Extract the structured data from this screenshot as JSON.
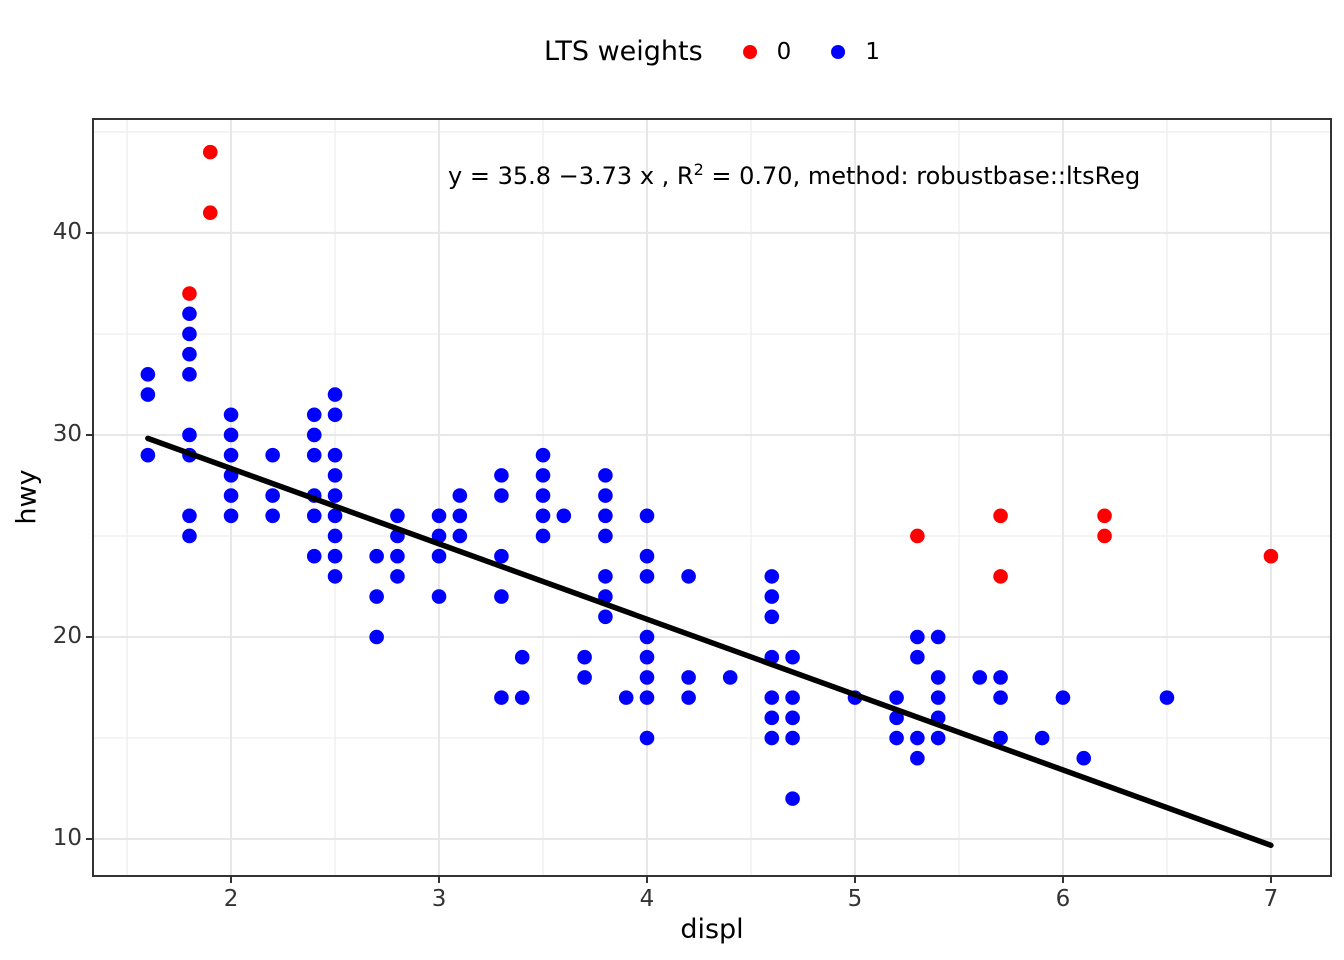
{
  "legend": {
    "title": "LTS weights",
    "items": [
      {
        "label": "0",
        "color": "#ff0000"
      },
      {
        "label": "1",
        "color": "#0000ff"
      }
    ]
  },
  "annotation": {
    "prefix": "y = 35.8 −3.73 x , R",
    "sup": "2",
    "suffix": " = 0.70, method: robustbase::ltsReg"
  },
  "axes": {
    "x": {
      "label": "displ",
      "ticks": [
        "2",
        "3",
        "4",
        "5",
        "6",
        "7"
      ],
      "tick_values": [
        2,
        3,
        4,
        5,
        6,
        7
      ],
      "minor_values": [
        1.5,
        2.5,
        3.5,
        4.5,
        5.5,
        6.5
      ],
      "domain": [
        1.341,
        7.284
      ]
    },
    "y": {
      "label": "hwy",
      "ticks": [
        "10",
        "20",
        "30",
        "40"
      ],
      "tick_values": [
        10,
        20,
        30,
        40
      ],
      "minor_values": [
        15,
        25,
        35,
        45
      ],
      "domain": [
        8.22,
        45.59
      ]
    }
  },
  "chart_data": {
    "type": "scatter",
    "title": "LTS weights",
    "xlabel": "displ",
    "ylabel": "hwy",
    "xlim": [
      1.341,
      7.284
    ],
    "ylim": [
      8.22,
      45.59
    ],
    "grid": "on",
    "legend_position": "top",
    "annotation_text": "y = 35.8 −3.73 x , R² = 0.70, method: robustbase::ltsReg",
    "method": "robustbase::ltsReg",
    "r_squared": 0.7,
    "regression_line": {
      "intercept": 35.8,
      "slope": -3.73,
      "x_start": 1.6,
      "x_end": 7.0,
      "color": "#000000",
      "width": 5.5
    },
    "series": [
      {
        "name": "0",
        "color": "#ff0000",
        "points": [
          [
            1.9,
            44
          ],
          [
            1.9,
            41
          ],
          [
            1.8,
            37
          ],
          [
            5.3,
            25
          ],
          [
            5.7,
            26
          ],
          [
            5.7,
            23
          ],
          [
            6.2,
            26
          ],
          [
            6.2,
            25
          ],
          [
            7.0,
            24
          ]
        ]
      },
      {
        "name": "1",
        "color": "#0000ff",
        "points": [
          [
            1.6,
            33
          ],
          [
            1.6,
            32
          ],
          [
            1.6,
            29
          ],
          [
            1.8,
            36
          ],
          [
            1.8,
            35
          ],
          [
            1.8,
            34
          ],
          [
            1.8,
            33
          ],
          [
            1.8,
            30
          ],
          [
            1.8,
            29
          ],
          [
            1.8,
            26
          ],
          [
            1.8,
            25
          ],
          [
            2.0,
            31
          ],
          [
            2.0,
            30
          ],
          [
            2.0,
            29
          ],
          [
            2.0,
            28
          ],
          [
            2.0,
            27
          ],
          [
            2.0,
            26
          ],
          [
            2.2,
            29
          ],
          [
            2.2,
            27
          ],
          [
            2.2,
            26
          ],
          [
            2.4,
            31
          ],
          [
            2.4,
            30
          ],
          [
            2.4,
            29
          ],
          [
            2.4,
            27
          ],
          [
            2.4,
            26
          ],
          [
            2.4,
            24
          ],
          [
            2.5,
            32
          ],
          [
            2.5,
            31
          ],
          [
            2.5,
            29
          ],
          [
            2.5,
            28
          ],
          [
            2.5,
            27
          ],
          [
            2.5,
            26
          ],
          [
            2.5,
            25
          ],
          [
            2.5,
            24
          ],
          [
            2.5,
            23
          ],
          [
            2.7,
            24
          ],
          [
            2.7,
            22
          ],
          [
            2.7,
            20
          ],
          [
            2.8,
            26
          ],
          [
            2.8,
            25
          ],
          [
            2.8,
            24
          ],
          [
            2.8,
            23
          ],
          [
            3.0,
            26
          ],
          [
            3.0,
            25
          ],
          [
            3.0,
            24
          ],
          [
            3.0,
            22
          ],
          [
            3.1,
            27
          ],
          [
            3.1,
            26
          ],
          [
            3.1,
            25
          ],
          [
            3.3,
            28
          ],
          [
            3.3,
            27
          ],
          [
            3.3,
            24
          ],
          [
            3.3,
            22
          ],
          [
            3.3,
            17
          ],
          [
            3.4,
            19
          ],
          [
            3.4,
            17
          ],
          [
            3.5,
            29
          ],
          [
            3.5,
            28
          ],
          [
            3.5,
            27
          ],
          [
            3.5,
            26
          ],
          [
            3.5,
            25
          ],
          [
            3.6,
            26
          ],
          [
            3.7,
            19
          ],
          [
            3.7,
            18
          ],
          [
            3.8,
            28
          ],
          [
            3.8,
            27
          ],
          [
            3.8,
            26
          ],
          [
            3.8,
            25
          ],
          [
            3.8,
            23
          ],
          [
            3.8,
            22
          ],
          [
            3.8,
            21
          ],
          [
            3.9,
            17
          ],
          [
            4.0,
            26
          ],
          [
            4.0,
            24
          ],
          [
            4.0,
            23
          ],
          [
            4.0,
            20
          ],
          [
            4.0,
            19
          ],
          [
            4.0,
            18
          ],
          [
            4.0,
            17
          ],
          [
            4.0,
            15
          ],
          [
            4.2,
            23
          ],
          [
            4.2,
            18
          ],
          [
            4.2,
            17
          ],
          [
            4.4,
            18
          ],
          [
            4.6,
            23
          ],
          [
            4.6,
            22
          ],
          [
            4.6,
            21
          ],
          [
            4.6,
            19
          ],
          [
            4.6,
            17
          ],
          [
            4.6,
            16
          ],
          [
            4.6,
            15
          ],
          [
            4.7,
            19
          ],
          [
            4.7,
            17
          ],
          [
            4.7,
            16
          ],
          [
            4.7,
            15
          ],
          [
            4.7,
            12
          ],
          [
            5.0,
            17
          ],
          [
            5.2,
            17
          ],
          [
            5.2,
            16
          ],
          [
            5.2,
            15
          ],
          [
            5.3,
            20
          ],
          [
            5.3,
            19
          ],
          [
            5.3,
            15
          ],
          [
            5.3,
            14
          ],
          [
            5.4,
            20
          ],
          [
            5.4,
            18
          ],
          [
            5.4,
            17
          ],
          [
            5.4,
            16
          ],
          [
            5.4,
            15
          ],
          [
            5.6,
            18
          ],
          [
            5.7,
            18
          ],
          [
            5.7,
            17
          ],
          [
            5.7,
            15
          ],
          [
            5.9,
            15
          ],
          [
            6.0,
            17
          ],
          [
            6.1,
            14
          ],
          [
            6.5,
            17
          ]
        ]
      }
    ]
  },
  "colors": {
    "background": "#ffffff",
    "panel_border": "#333333",
    "grid_major": "#e7e7e7",
    "grid_minor": "#f0f0f0",
    "tick": "#333333",
    "axis_text": "#333333",
    "point_red": "#ff0000",
    "point_blue": "#0000ff",
    "line": "#000000"
  }
}
